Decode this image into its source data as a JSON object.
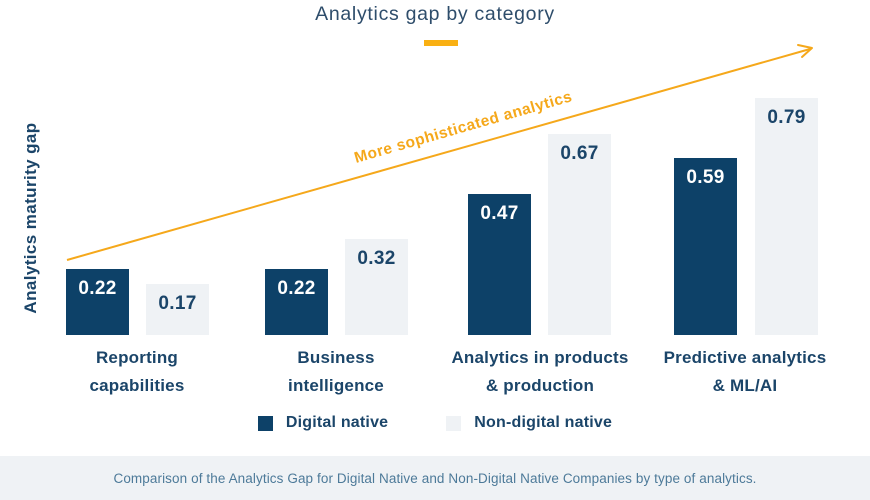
{
  "title": "Analytics gap by category",
  "colors": {
    "navy": "#0d4168",
    "light_fill": "#eff2f5",
    "gold": "#f5a81b",
    "underline_gold": "#f9b013",
    "title_text": "#2e4d6b",
    "label_text": "#1b4569",
    "caption_text": "#4d7a99",
    "caption_bg": "#eff2f5"
  },
  "chart_data": {
    "type": "bar",
    "title": "Analytics gap by category",
    "xlabel": "",
    "ylabel": "Analytics maturity gap",
    "categories": [
      "Reporting capabilities",
      "Business intelligence",
      "Analytics in products & production",
      "Predictive analytics & ML/AI"
    ],
    "categories_lines": [
      [
        "Reporting",
        "capabilities"
      ],
      [
        "Business",
        "intelligence"
      ],
      [
        "Analytics in products",
        "& production"
      ],
      [
        "Predictive analytics",
        "& ML/AI"
      ]
    ],
    "series": [
      {
        "name": "Digital native",
        "color": "#0d4168",
        "values": [
          0.22,
          0.22,
          0.47,
          0.59
        ]
      },
      {
        "name": "Non-digital native",
        "color": "#eff2f5",
        "values": [
          0.17,
          0.32,
          0.67,
          0.79
        ]
      }
    ],
    "annotation": "More sophisticated analytics",
    "value_labels": true,
    "ylim": [
      0,
      0.9
    ],
    "grid": false,
    "legend_position": "bottom"
  },
  "footer": {
    "caption": "Comparison of the Analytics Gap for Digital Native and Non-Digital Native Companies by type of analytics."
  }
}
